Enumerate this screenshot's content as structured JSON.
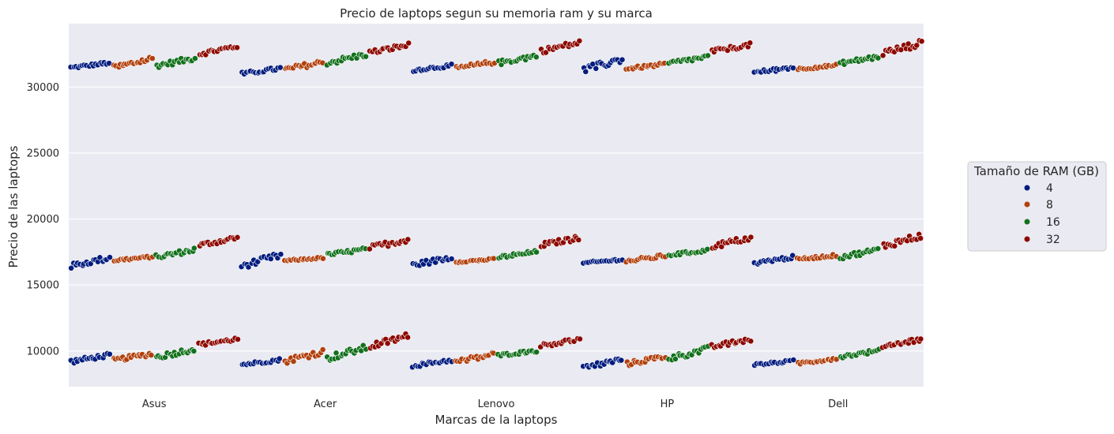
{
  "chart_data": {
    "type": "scatter",
    "subtype": "swarm",
    "title": "Precio de laptops segun su memoria ram y su marca",
    "xlabel": "Marcas de la laptops",
    "ylabel": "Precio de las laptops",
    "categories": [
      "Asus",
      "Acer",
      "Lenovo",
      "HP",
      "Dell"
    ],
    "ylim": [
      7300,
      34800
    ],
    "yticks": [
      "10000",
      "15000",
      "20000",
      "25000",
      "30000"
    ],
    "grid": true,
    "legend_position": "right",
    "legend_title": "Tamaño de RAM (GB)",
    "series": [
      {
        "name": "4",
        "color": "#001c7f"
      },
      {
        "name": "8",
        "color": "#b1400d"
      },
      {
        "name": "16",
        "color": "#12711c"
      },
      {
        "name": "32",
        "color": "#8c0800"
      }
    ],
    "clusters": [
      {
        "category": "Asus",
        "base": 31600,
        "ranges": [
          [
            31400,
            31900
          ],
          [
            31300,
            32300
          ],
          [
            31500,
            32300
          ],
          [
            32400,
            33200
          ]
        ]
      },
      {
        "category": "Asus",
        "base": 16900,
        "ranges": [
          [
            16300,
            17200
          ],
          [
            16800,
            17200
          ],
          [
            17000,
            17800
          ],
          [
            17900,
            18700
          ]
        ]
      },
      {
        "category": "Asus",
        "base": 9300,
        "ranges": [
          [
            9100,
            9800
          ],
          [
            9200,
            9900
          ],
          [
            9400,
            10300
          ],
          [
            10400,
            11000
          ]
        ]
      },
      {
        "category": "Acer",
        "base": 31400,
        "ranges": [
          [
            30900,
            31500
          ],
          [
            31200,
            32000
          ],
          [
            31700,
            32600
          ],
          [
            32500,
            33300
          ]
        ]
      },
      {
        "category": "Acer",
        "base": 17000,
        "ranges": [
          [
            16300,
            17400
          ],
          [
            16800,
            17100
          ],
          [
            17200,
            17800
          ],
          [
            17700,
            18600
          ]
        ]
      },
      {
        "category": "Acer",
        "base": 9300,
        "ranges": [
          [
            8900,
            9400
          ],
          [
            9100,
            10100
          ],
          [
            9300,
            10400
          ],
          [
            10200,
            11300
          ]
        ]
      },
      {
        "category": "Lenovo",
        "base": 31600,
        "ranges": [
          [
            31200,
            31700
          ],
          [
            31300,
            32000
          ],
          [
            31700,
            32500
          ],
          [
            32600,
            33500
          ]
        ]
      },
      {
        "category": "Lenovo",
        "base": 17000,
        "ranges": [
          [
            16400,
            17200
          ],
          [
            16700,
            17000
          ],
          [
            17000,
            17600
          ],
          [
            17900,
            18700
          ]
        ]
      },
      {
        "category": "Lenovo",
        "base": 9200,
        "ranges": [
          [
            8800,
            9400
          ],
          [
            9000,
            9900
          ],
          [
            9600,
            10100
          ],
          [
            10300,
            11000
          ]
        ]
      },
      {
        "category": "HP",
        "base": 31500,
        "ranges": [
          [
            31100,
            32300
          ],
          [
            31300,
            31800
          ],
          [
            31700,
            32400
          ],
          [
            32600,
            33300
          ]
        ]
      },
      {
        "category": "HP",
        "base": 16900,
        "ranges": [
          [
            16600,
            17000
          ],
          [
            16700,
            17300
          ],
          [
            17200,
            17700
          ],
          [
            17800,
            18700
          ]
        ]
      },
      {
        "category": "HP",
        "base": 9400,
        "ranges": [
          [
            8600,
            9500
          ],
          [
            8900,
            9700
          ],
          [
            9300,
            10300
          ],
          [
            10200,
            11000
          ]
        ]
      },
      {
        "category": "Dell",
        "base": 31400,
        "ranges": [
          [
            31000,
            31600
          ],
          [
            31300,
            31700
          ],
          [
            31700,
            32400
          ],
          [
            32400,
            33500
          ]
        ]
      },
      {
        "category": "Dell",
        "base": 17000,
        "ranges": [
          [
            16600,
            17200
          ],
          [
            16900,
            17300
          ],
          [
            17000,
            17800
          ],
          [
            17800,
            18900
          ]
        ]
      },
      {
        "category": "Dell",
        "base": 9200,
        "ranges": [
          [
            8900,
            9300
          ],
          [
            9000,
            9500
          ],
          [
            9500,
            10100
          ],
          [
            10300,
            11000
          ]
        ]
      }
    ]
  }
}
